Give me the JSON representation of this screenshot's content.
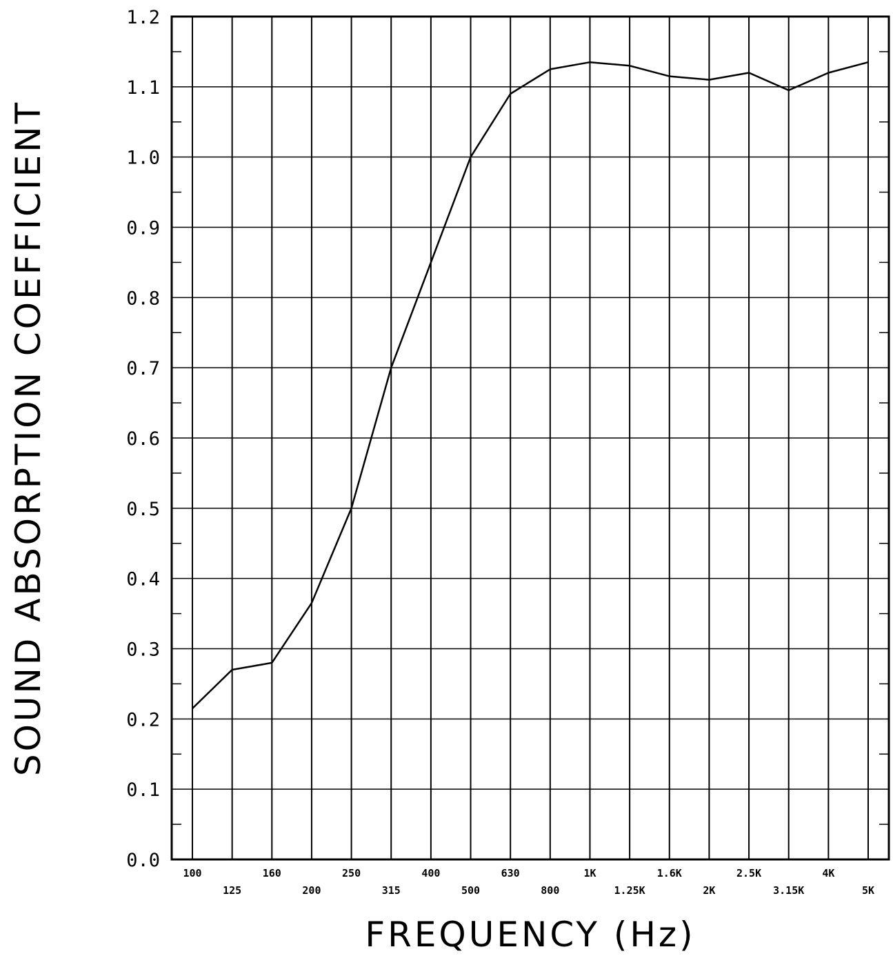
{
  "chart_data": {
    "type": "line",
    "title": "",
    "xlabel": "FREQUENCY (Hz)",
    "ylabel": "SOUND ABSORPTION COEFFICIENT",
    "x_scale": "log (one-third octave bands)",
    "categories": [
      "100",
      "125",
      "160",
      "200",
      "250",
      "315",
      "400",
      "500",
      "630",
      "800",
      "1K",
      "1.25K",
      "1.6K",
      "2K",
      "2.5K",
      "3.15K",
      "4K",
      "5K"
    ],
    "y_ticks": [
      "0.0",
      "0.1",
      "0.2",
      "0.3",
      "0.4",
      "0.5",
      "0.6",
      "0.7",
      "0.8",
      "0.9",
      "1.0",
      "1.1",
      "1.2"
    ],
    "ylim": [
      0,
      1.2
    ],
    "grid": true,
    "legend": "none",
    "series": [
      {
        "values": [
          0.215,
          0.27,
          0.28,
          0.365,
          0.5,
          0.7,
          0.85,
          1.0,
          1.09,
          1.125,
          1.135,
          1.13,
          1.115,
          1.11,
          1.12,
          1.095,
          1.12,
          1.135
        ]
      }
    ],
    "colors": {
      "line": "#000000",
      "grid": "#000000",
      "background": "#ffffff"
    }
  }
}
